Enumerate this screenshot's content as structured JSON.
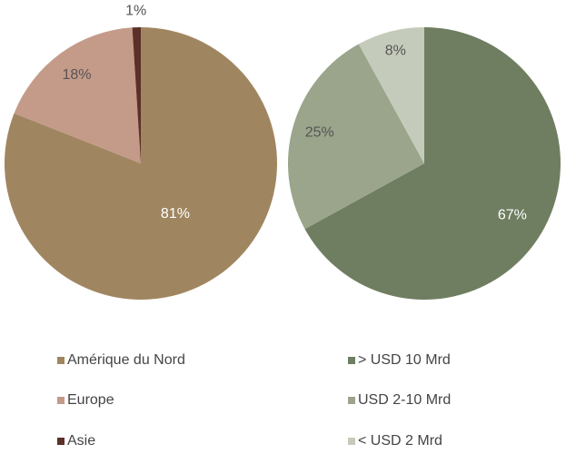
{
  "chart_data": [
    {
      "type": "pie",
      "categories": [
        "Amérique du Nord",
        "Europe",
        "Asie"
      ],
      "values": [
        81,
        18,
        1
      ],
      "value_labels": [
        "81%",
        "18%",
        "1%"
      ],
      "colors": [
        "#a08660",
        "#c49a88",
        "#5a3028"
      ]
    },
    {
      "type": "pie",
      "categories": [
        "> USD 10 Mrd",
        "USD 2-10 Mrd",
        "< USD 2 Mrd"
      ],
      "values": [
        67,
        25,
        8
      ],
      "value_labels": [
        "67%",
        "25%",
        "8%"
      ],
      "colors": [
        "#6f7d60",
        "#9aa58b",
        "#c5cbbb"
      ]
    }
  ]
}
